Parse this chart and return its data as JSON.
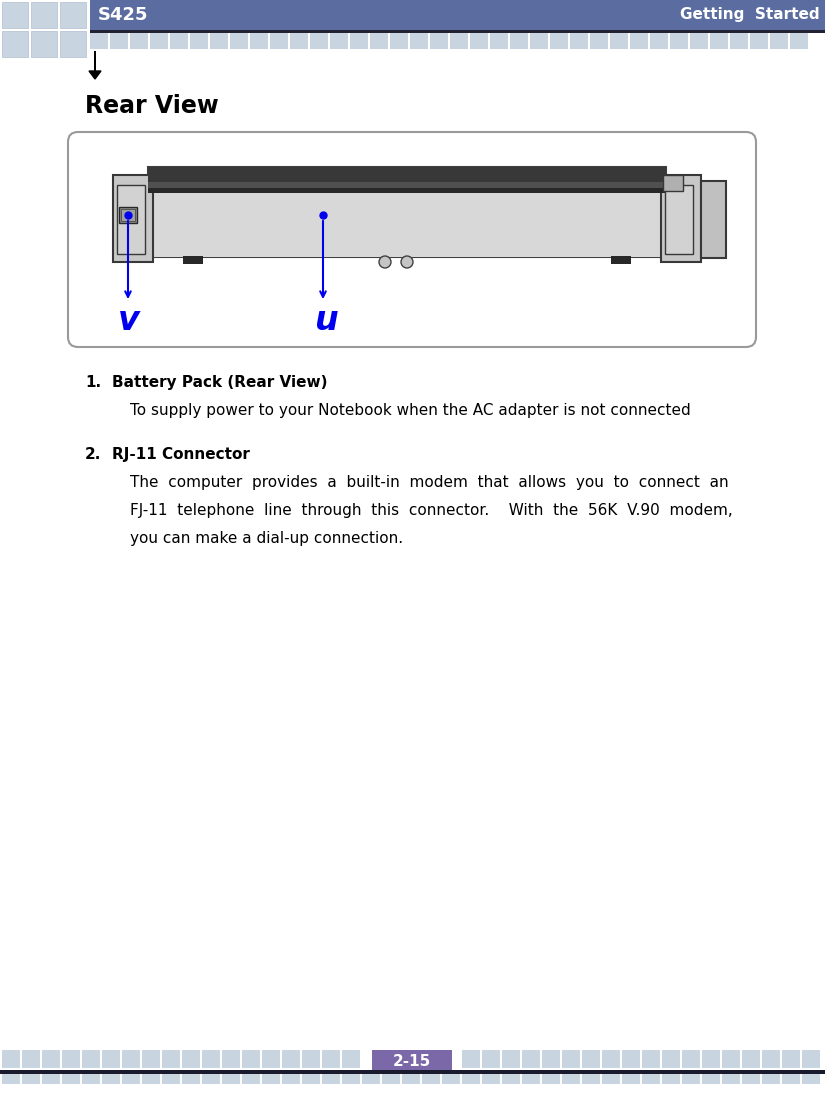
{
  "header_bg_color": "#5b6da0",
  "header_text_left": "S425",
  "header_text_right": "Getting  Started",
  "header_text_color": "#ffffff",
  "tile_color_light": "#c8d4e0",
  "tile_color_dark": "#8090a8",
  "footer_page": "2-15",
  "footer_page_bg": "#7b68a8",
  "page_bg": "#ffffff",
  "arrow_color": "#000000",
  "title_text": "Rear View",
  "item1_label": "1.",
  "item1_bold": "Battery Pack (Rear View)",
  "item1_desc": "To supply power to your Notebook when the AC adapter is not connected",
  "item2_label": "2.",
  "item2_bold": "RJ-11 Connector",
  "item2_desc1": "The  computer  provides  a  built-in  modem  that  allows  you  to  connect  an",
  "item2_desc2": "FJ-11  telephone  line  through  this  connector.    With  the  56K  V.90  modem,",
  "item2_desc3": "you can make a dial-up connection.",
  "blue_color": "#0000ee",
  "label_v": "v",
  "label_u": "u",
  "box_bg": "#ffffff",
  "box_edge": "#888888",
  "notebook_bg": "#d8d8d8",
  "notebook_dark": "#303030",
  "notebook_mid": "#b0b0b0"
}
